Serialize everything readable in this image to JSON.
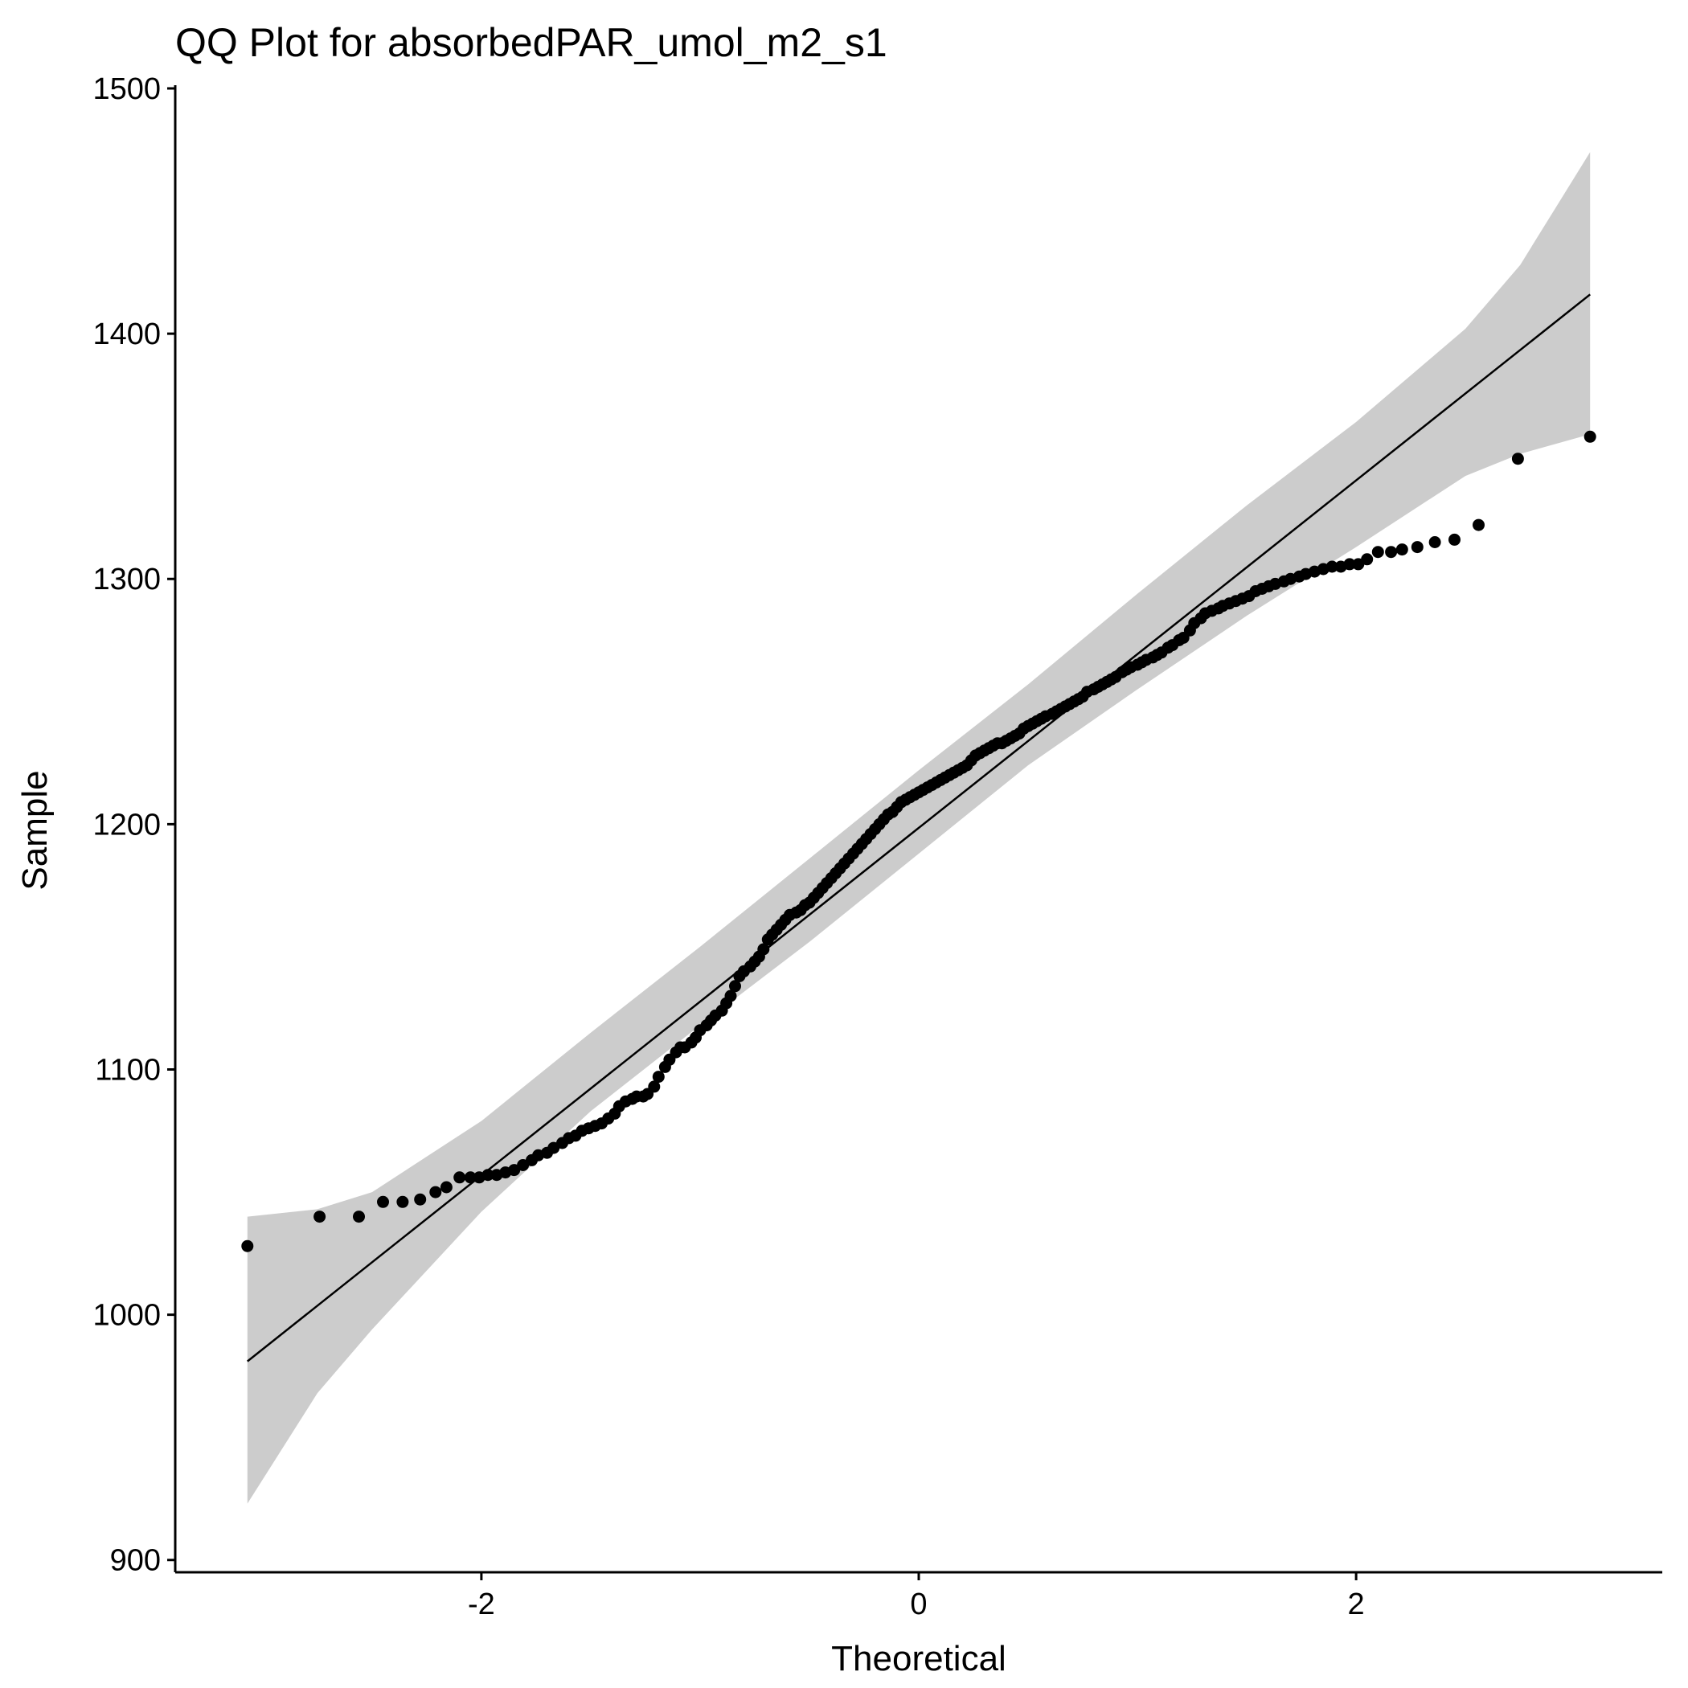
{
  "chart_data": {
    "type": "scatter",
    "title": "QQ Plot for absorbedPAR_umol_m2_s1",
    "xlabel": "Theoretical",
    "ylabel": "Sample",
    "xlim": [
      -3.4,
      3.4
    ],
    "ylim": [
      895,
      1500
    ],
    "x_ticks": [
      -2,
      0,
      2
    ],
    "x_tick_labels": [
      "-2",
      "0",
      "2"
    ],
    "y_ticks": [
      900,
      1000,
      1100,
      1200,
      1300,
      1400,
      1500
    ],
    "y_tick_labels": [
      "900",
      "1000",
      "1100",
      "1200",
      "1300",
      "1400",
      "1500"
    ],
    "grid": false,
    "legend": "none",
    "colors": {
      "points": "#000000",
      "line": "#000000",
      "band": "#cccccc",
      "axis": "#000000"
    },
    "reference_line": {
      "x": [
        -3.07,
        3.07
      ],
      "y": [
        981,
        1416
      ]
    },
    "confidence_band": {
      "x": [
        -3.07,
        -2.75,
        -2.5,
        -2.0,
        -1.5,
        -1.0,
        -0.5,
        0.0,
        0.5,
        1.0,
        1.5,
        2.0,
        2.5,
        2.75,
        3.07
      ],
      "upper": [
        1040,
        1043,
        1050,
        1079,
        1115,
        1150,
        1186,
        1222,
        1257,
        1294,
        1330,
        1364,
        1402,
        1428,
        1474
      ],
      "lower": [
        923,
        968,
        994,
        1042,
        1083,
        1118,
        1152,
        1188,
        1224,
        1255,
        1285,
        1313,
        1342,
        1351,
        1359
      ]
    },
    "series": [
      {
        "values": [
          [
            -3.07,
            1028
          ],
          [
            -2.74,
            1040
          ],
          [
            -2.56,
            1040
          ],
          [
            -2.45,
            1046
          ],
          [
            -2.36,
            1046
          ],
          [
            -2.28,
            1047
          ],
          [
            -2.21,
            1050
          ],
          [
            -2.16,
            1052
          ],
          [
            -2.1,
            1056
          ],
          [
            -2.05,
            1056
          ],
          [
            -2.01,
            1056
          ],
          [
            -1.97,
            1057
          ],
          [
            -1.93,
            1057
          ],
          [
            -1.89,
            1058
          ],
          [
            -1.85,
            1059
          ],
          [
            -1.81,
            1061
          ],
          [
            -1.77,
            1063
          ],
          [
            -1.74,
            1065
          ],
          [
            -1.7,
            1066
          ],
          [
            -1.67,
            1068
          ],
          [
            -1.63,
            1070
          ],
          [
            -1.6,
            1072
          ],
          [
            -1.57,
            1073
          ],
          [
            -1.54,
            1075
          ],
          [
            -1.51,
            1076
          ],
          [
            -1.48,
            1077
          ],
          [
            -1.45,
            1078
          ],
          [
            -1.42,
            1080
          ],
          [
            -1.39,
            1082
          ],
          [
            -1.37,
            1085
          ],
          [
            -1.34,
            1087
          ],
          [
            -1.31,
            1088
          ],
          [
            -1.29,
            1089
          ],
          [
            -1.26,
            1089
          ],
          [
            -1.24,
            1090
          ],
          [
            -1.21,
            1093
          ],
          [
            -1.19,
            1097
          ],
          [
            -1.16,
            1101
          ],
          [
            -1.14,
            1104
          ],
          [
            -1.11,
            1107
          ],
          [
            -1.09,
            1109
          ],
          [
            -1.07,
            1109
          ],
          [
            -1.04,
            1111
          ],
          [
            -1.02,
            1113
          ],
          [
            -1.0,
            1116
          ],
          [
            -0.97,
            1118
          ],
          [
            -0.95,
            1120
          ],
          [
            -0.93,
            1122
          ],
          [
            -0.9,
            1124
          ],
          [
            -0.88,
            1127
          ],
          [
            -0.86,
            1130
          ],
          [
            -0.84,
            1134
          ],
          [
            -0.82,
            1138
          ],
          [
            -0.8,
            1140
          ],
          [
            -0.77,
            1142
          ],
          [
            -0.75,
            1144
          ],
          [
            -0.73,
            1146
          ],
          [
            -0.71,
            1149
          ],
          [
            -0.69,
            1153
          ],
          [
            -0.67,
            1155
          ],
          [
            -0.65,
            1157
          ],
          [
            -0.63,
            1159
          ],
          [
            -0.61,
            1161
          ],
          [
            -0.59,
            1163
          ],
          [
            -0.56,
            1164
          ],
          [
            -0.54,
            1165
          ],
          [
            -0.52,
            1167
          ],
          [
            -0.5,
            1168
          ],
          [
            -0.48,
            1170
          ],
          [
            -0.46,
            1172
          ],
          [
            -0.44,
            1174
          ],
          [
            -0.42,
            1176
          ],
          [
            -0.4,
            1178
          ],
          [
            -0.38,
            1180
          ],
          [
            -0.36,
            1182
          ],
          [
            -0.34,
            1184
          ],
          [
            -0.32,
            1186
          ],
          [
            -0.3,
            1188
          ],
          [
            -0.28,
            1190
          ],
          [
            -0.26,
            1192
          ],
          [
            -0.24,
            1194
          ],
          [
            -0.22,
            1196
          ],
          [
            -0.2,
            1198
          ],
          [
            -0.18,
            1200
          ],
          [
            -0.16,
            1202
          ],
          [
            -0.14,
            1204
          ],
          [
            -0.12,
            1205
          ],
          [
            -0.1,
            1207
          ],
          [
            -0.08,
            1209
          ],
          [
            -0.06,
            1210
          ],
          [
            -0.04,
            1211
          ],
          [
            -0.02,
            1212
          ],
          [
            0.0,
            1213
          ],
          [
            0.02,
            1214
          ],
          [
            0.04,
            1215
          ],
          [
            0.06,
            1216
          ],
          [
            0.08,
            1217
          ],
          [
            0.1,
            1218
          ],
          [
            0.12,
            1219
          ],
          [
            0.14,
            1220
          ],
          [
            0.16,
            1221
          ],
          [
            0.18,
            1222
          ],
          [
            0.2,
            1223
          ],
          [
            0.22,
            1224
          ],
          [
            0.24,
            1226
          ],
          [
            0.26,
            1228
          ],
          [
            0.28,
            1229
          ],
          [
            0.3,
            1230
          ],
          [
            0.32,
            1231
          ],
          [
            0.34,
            1232
          ],
          [
            0.36,
            1233
          ],
          [
            0.38,
            1233
          ],
          [
            0.4,
            1234
          ],
          [
            0.42,
            1235
          ],
          [
            0.44,
            1236
          ],
          [
            0.46,
            1237
          ],
          [
            0.48,
            1239
          ],
          [
            0.5,
            1240
          ],
          [
            0.52,
            1241
          ],
          [
            0.54,
            1242
          ],
          [
            0.56,
            1243
          ],
          [
            0.58,
            1244
          ],
          [
            0.61,
            1245
          ],
          [
            0.63,
            1246
          ],
          [
            0.65,
            1247
          ],
          [
            0.67,
            1248
          ],
          [
            0.69,
            1249
          ],
          [
            0.71,
            1250
          ],
          [
            0.73,
            1251
          ],
          [
            0.75,
            1252
          ],
          [
            0.77,
            1254
          ],
          [
            0.8,
            1255
          ],
          [
            0.82,
            1256
          ],
          [
            0.84,
            1257
          ],
          [
            0.86,
            1258
          ],
          [
            0.88,
            1259
          ],
          [
            0.9,
            1260
          ],
          [
            0.93,
            1262
          ],
          [
            0.95,
            1263
          ],
          [
            0.97,
            1264
          ],
          [
            1.0,
            1265
          ],
          [
            1.02,
            1266
          ],
          [
            1.04,
            1267
          ],
          [
            1.07,
            1268
          ],
          [
            1.09,
            1269
          ],
          [
            1.11,
            1270
          ],
          [
            1.14,
            1272
          ],
          [
            1.16,
            1273
          ],
          [
            1.19,
            1275
          ],
          [
            1.21,
            1276
          ],
          [
            1.24,
            1279
          ],
          [
            1.26,
            1282
          ],
          [
            1.29,
            1284
          ],
          [
            1.31,
            1286
          ],
          [
            1.34,
            1287
          ],
          [
            1.37,
            1288
          ],
          [
            1.39,
            1289
          ],
          [
            1.42,
            1290
          ],
          [
            1.45,
            1291
          ],
          [
            1.48,
            1292
          ],
          [
            1.51,
            1293
          ],
          [
            1.54,
            1295
          ],
          [
            1.57,
            1296
          ],
          [
            1.6,
            1297
          ],
          [
            1.63,
            1298
          ],
          [
            1.67,
            1299
          ],
          [
            1.7,
            1300
          ],
          [
            1.74,
            1301
          ],
          [
            1.77,
            1302
          ],
          [
            1.81,
            1303
          ],
          [
            1.85,
            1304
          ],
          [
            1.89,
            1305
          ],
          [
            1.93,
            1305
          ],
          [
            1.97,
            1306
          ],
          [
            2.01,
            1306
          ],
          [
            2.05,
            1308
          ],
          [
            2.1,
            1311
          ],
          [
            2.16,
            1311
          ],
          [
            2.21,
            1312
          ],
          [
            2.28,
            1313
          ],
          [
            2.36,
            1315
          ],
          [
            2.45,
            1316
          ],
          [
            2.56,
            1322
          ],
          [
            2.74,
            1349
          ],
          [
            3.07,
            1358
          ]
        ]
      }
    ]
  }
}
